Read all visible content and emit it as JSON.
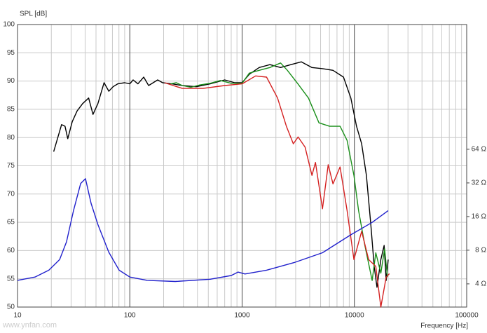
{
  "watermark": "www.ynfan.com",
  "chart_data": {
    "type": "line",
    "y_label": "SPL [dB]",
    "x_label": "Frequency [Hz]",
    "xlog": true,
    "xlim": [
      10,
      100000
    ],
    "xticks": [
      10,
      100,
      1000,
      10000,
      100000
    ],
    "ylim": [
      50,
      100
    ],
    "yticks": [
      50,
      55,
      60,
      65,
      70,
      75,
      80,
      85,
      90,
      95,
      100
    ],
    "y2log": true,
    "y2lim": [
      2.48,
      836
    ],
    "y2ticks": [
      {
        "value": 4,
        "label": "4 Ω"
      },
      {
        "value": 8,
        "label": "8 Ω"
      },
      {
        "value": 16,
        "label": "16 Ω"
      },
      {
        "value": 32,
        "label": "32 Ω"
      },
      {
        "value": 64,
        "label": "64 Ω"
      }
    ],
    "grid": true,
    "minor_grid": true,
    "series": [
      {
        "color": "#000000",
        "x": [
          21,
          24.7,
          26.5,
          28,
          30.7,
          33.9,
          38,
          43,
          47,
          52,
          59,
          65,
          71,
          78,
          90,
          100,
          107,
          118,
          133,
          147,
          177,
          196,
          237,
          293,
          391,
          520,
          700,
          860,
          1000,
          1160,
          1420,
          1770,
          2200,
          2720,
          3370,
          4180,
          5200,
          6450,
          8000,
          9300,
          10450,
          11600,
          12800,
          14000,
          15000,
          15900,
          17200,
          18400,
          19200,
          20000
        ],
        "values": [
          77.5,
          82.3,
          82,
          79.8,
          82.8,
          84.7,
          86,
          87,
          84.1,
          86,
          89.7,
          88.2,
          89,
          89.5,
          89.7,
          89.5,
          90.2,
          89.5,
          90.7,
          89.2,
          90.2,
          89.7,
          89.5,
          89.2,
          89,
          89.5,
          90.2,
          89.7,
          89.7,
          91.2,
          92.4,
          92.9,
          92.4,
          92.9,
          93.4,
          92.4,
          92.2,
          91.9,
          90.7,
          87,
          82,
          78.9,
          73.3,
          64.6,
          57.2,
          53.5,
          58.4,
          60.9,
          54.7,
          58.4
        ]
      },
      {
        "color": "#1a8f1a",
        "x": [
          230,
          260,
          293,
          350,
          420,
          520,
          640,
          800,
          1000,
          1160,
          1420,
          1770,
          2200,
          2530,
          3140,
          3900,
          4840,
          6000,
          7450,
          8600,
          9900,
          10900,
          12400,
          14400,
          15500,
          17200,
          18600,
          19700
        ],
        "values": [
          89.5,
          89.7,
          89.2,
          88.9,
          89.3,
          89.6,
          90.1,
          89.6,
          89.6,
          91.4,
          91.9,
          92.4,
          93.2,
          91.9,
          89.5,
          87,
          82.6,
          82,
          82,
          79.5,
          73.3,
          67.1,
          60.9,
          54.7,
          59.6,
          56,
          60.3,
          55.3
        ]
      },
      {
        "color": "#d42020",
        "x": [
          204,
          293,
          450,
          700,
          1000,
          1320,
          1650,
          2070,
          2480,
          2860,
          3150,
          3640,
          4190,
          4500,
          5200,
          5850,
          6450,
          7450,
          8600,
          9900,
          11600,
          13400,
          15500,
          17200,
          19200,
          20500
        ],
        "values": [
          89.7,
          88.7,
          88.7,
          89.2,
          89.5,
          90.9,
          90.7,
          87,
          82,
          78.9,
          80.1,
          78.3,
          73.3,
          75.6,
          67.4,
          75.2,
          71.8,
          74.8,
          67.1,
          58.4,
          63.4,
          58.4,
          57.2,
          50,
          55.3,
          55.9
        ]
      },
      {
        "color": "#2020cc",
        "axis": "y2",
        "x": [
          10,
          14.3,
          19,
          23.7,
          27.3,
          31.5,
          36.5,
          40.3,
          45.2,
          52,
          64.9,
          80.3,
          100,
          143,
          254,
          520,
          800,
          920,
          1060,
          1650,
          2900,
          5200,
          9300,
          14400,
          20000
        ],
        "values": [
          4.3,
          4.6,
          5.3,
          6.6,
          9.5,
          18.1,
          31.6,
          34.9,
          21,
          13.6,
          7.7,
          5.3,
          4.6,
          4.3,
          4.2,
          4.4,
          4.75,
          5.1,
          4.9,
          5.3,
          6.2,
          7.6,
          11,
          14.2,
          18.1
        ]
      }
    ]
  }
}
